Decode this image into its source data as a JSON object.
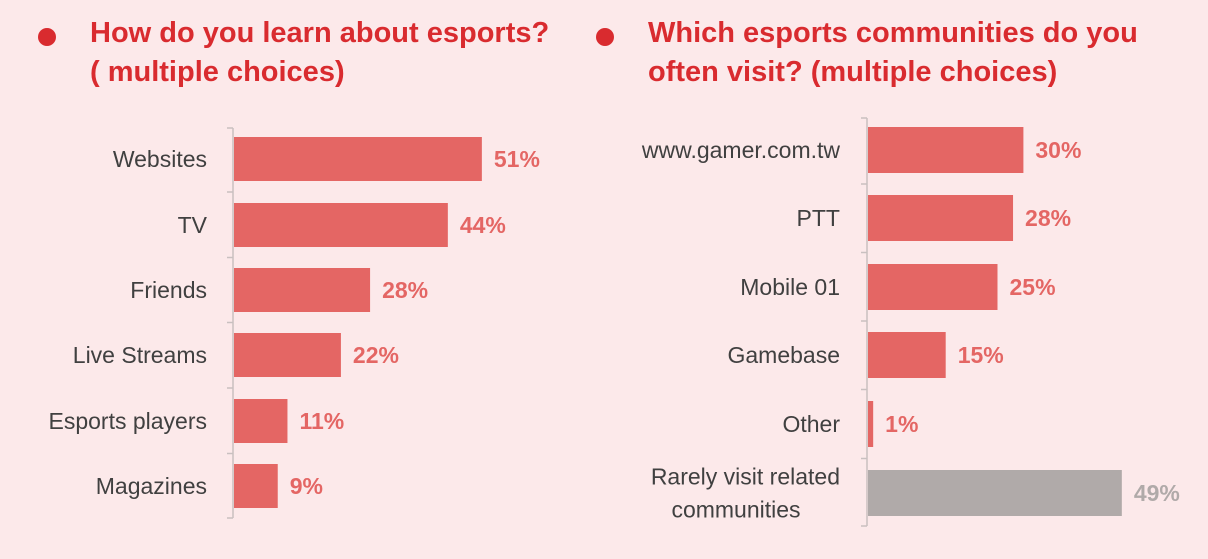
{
  "colors": {
    "background": "#fce9ea",
    "accent": "#d92b2f",
    "bar": "#e46664",
    "bar_muted": "#b0aaa9",
    "value_label": "#e46664",
    "value_label_muted": "#b0aaa9",
    "axis": "#c9c0c0"
  },
  "charts": {
    "left": {
      "title_line1": "How do you learn about esports?",
      "title_line2": "( multiple choices)"
    },
    "right": {
      "title_line1": "Which esports communities do you",
      "title_line2": "often visit? (multiple choices)"
    }
  },
  "chart_data": [
    {
      "type": "bar",
      "orientation": "horizontal",
      "title": "How do you learn about esports? ( multiple choices)",
      "categories": [
        "Websites",
        "TV",
        "Friends",
        "Live Streams",
        "Esports players",
        "Magazines"
      ],
      "values": [
        51,
        44,
        28,
        22,
        11,
        9
      ],
      "value_labels": [
        "51%",
        "44%",
        "28%",
        "22%",
        "11%",
        "9%"
      ],
      "grid": false,
      "legend": "none"
    },
    {
      "type": "bar",
      "orientation": "horizontal",
      "title": "Which esports communities do you often visit? (multiple choices)",
      "categories": [
        [
          "www.gamer.com.tw"
        ],
        [
          "PTT"
        ],
        [
          "Mobile 01"
        ],
        [
          "Gamebase"
        ],
        [
          "Other"
        ],
        [
          "Rarely visit related",
          "communities"
        ]
      ],
      "values": [
        30,
        28,
        25,
        15,
        1,
        49
      ],
      "value_labels": [
        "30%",
        "28%",
        "25%",
        "15%",
        "1%",
        "49%"
      ],
      "highlight": [
        true,
        true,
        true,
        true,
        true,
        false
      ],
      "grid": false,
      "legend": "none"
    }
  ]
}
